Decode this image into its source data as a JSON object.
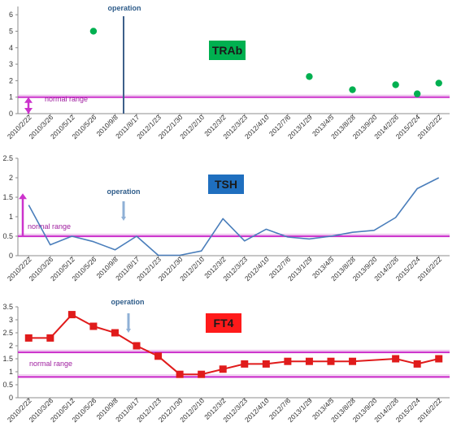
{
  "chart_data": [
    {
      "type": "scatter",
      "x_categories": [
        "2010/2/22",
        "2010/3/26",
        "2010/5/12",
        "2010/5/26",
        "2010/9/8",
        "2011/8/17",
        "2012/1/23",
        "2012/1/30",
        "2012/2/10",
        "2012/3/2",
        "2012/3/23",
        "2012/4/10",
        "2012/7/6",
        "2013/1/29",
        "2013/4/5",
        "2013/8/28",
        "2013/9/20",
        "2014/2/26",
        "2015/2/24",
        "2016/2/22"
      ],
      "y_ticks": [
        "0",
        "1",
        "2",
        "3",
        "4",
        "5",
        "6"
      ],
      "ylim": [
        0,
        6.5
      ],
      "series": [
        {
          "color": "#00b050",
          "points": [
            {
              "x": "2010/5/26",
              "y": 5.0
            },
            {
              "x": "2013/1/29",
              "y": 2.25
            },
            {
              "x": "2013/8/28",
              "y": 1.45
            },
            {
              "x": "2014/2/26",
              "y": 1.75
            },
            {
              "x": "2015/2/24",
              "y": 1.2
            },
            {
              "x": "2016/2/22",
              "y": 1.85
            }
          ]
        }
      ],
      "reference_lines": [
        {
          "y": 1.0,
          "color": "#cc33cc"
        }
      ],
      "normal_range_arrow": {
        "from": 0,
        "to": 1.0
      },
      "operation_marker": {
        "after_x": "2010/9/8",
        "label": "operation",
        "style": "solid"
      },
      "box_label": {
        "text": "TRAb",
        "fill": "#00b050",
        "text_color": "#1a1a1a"
      },
      "range_label": "normal range",
      "grid": false
    },
    {
      "type": "line",
      "x_categories": [
        "2010/2/22",
        "2010/3/26",
        "2010/5/12",
        "2010/5/26",
        "2010/9/8",
        "2011/8/17",
        "2012/1/23",
        "2012/1/30",
        "2012/2/10",
        "2012/3/2",
        "2012/3/23",
        "2012/4/10",
        "2012/7/6",
        "2013/1/29",
        "2013/4/5",
        "2013/8/28",
        "2013/9/20",
        "2014/2/26",
        "2015/2/24",
        "2016/2/22"
      ],
      "y_ticks": [
        "0",
        "0.5",
        "1",
        "1.5",
        "2",
        "2.5"
      ],
      "ylim": [
        0,
        2.5
      ],
      "series": [
        {
          "color": "#4a7ebb",
          "values": [
            1.3,
            0.28,
            0.5,
            0.36,
            0.15,
            0.5,
            0.01,
            0.01,
            0.12,
            0.95,
            0.38,
            0.68,
            0.48,
            0.43,
            0.5,
            0.6,
            0.65,
            0.98,
            1.72,
            2.0
          ]
        }
      ],
      "reference_lines": [
        {
          "y": 0.5,
          "color": "#cc33cc"
        }
      ],
      "normal_range_arrow": {
        "from": 0.5,
        "to": 1.6
      },
      "operation_marker": {
        "after_x": "2010/9/8",
        "label": "operation",
        "style": "arrow"
      },
      "box_label": {
        "text": "TSH",
        "fill": "#1f6fbf",
        "text_color": "#1a1a1a"
      },
      "range_label": "normal range",
      "grid": false
    },
    {
      "type": "line",
      "x_categories": [
        "2010/2/22",
        "2010/3/26",
        "2010/5/12",
        "2010/5/26",
        "2010/9/8",
        "2011/8/17",
        "2012/1/23",
        "2012/1/30",
        "2012/2/10",
        "2012/3/2",
        "2012/3/23",
        "2012/4/10",
        "2012/7/6",
        "2013/1/29",
        "2013/4/5",
        "2013/8/28",
        "2013/9/20",
        "2014/2/26",
        "2015/2/24",
        "2016/2/22"
      ],
      "y_ticks": [
        "0",
        "0.5",
        "1",
        "1.5",
        "2",
        "2.5",
        "3",
        "3.5"
      ],
      "ylim": [
        0,
        3.5
      ],
      "series": [
        {
          "color": "#e01b1b",
          "marker": "square",
          "values": [
            2.3,
            2.3,
            3.2,
            2.75,
            2.5,
            2.0,
            1.6,
            0.9,
            0.9,
            1.1,
            1.3,
            1.3,
            1.4,
            1.4,
            1.4,
            1.4,
            null,
            1.5,
            1.3,
            1.5
          ]
        }
      ],
      "reference_lines": [
        {
          "y": 1.75,
          "color": "#cc33cc"
        },
        {
          "y": 0.8,
          "color": "#cc33cc"
        }
      ],
      "operation_marker": {
        "after_x": "2010/9/8",
        "label": "operation",
        "style": "arrow"
      },
      "box_label": {
        "text": "FT4",
        "fill": "#ff1a1a",
        "text_color": "#1a1a1a"
      },
      "range_label": "normal range",
      "grid": false
    }
  ]
}
